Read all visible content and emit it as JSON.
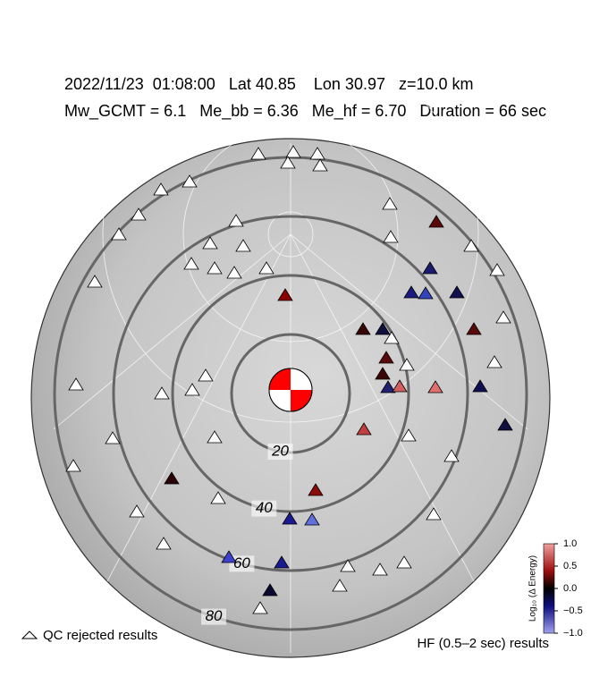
{
  "header": {
    "line1": "2022/11/23  01:08:00   Lat 40.85    Lon 30.97   z=10.0 km",
    "line2": "Mw_GCMT = 6.1   Me_bb = 6.36   Me_hf = 6.70   Duration = 66 sec"
  },
  "distance_rings": [
    20,
    40,
    60,
    80
  ],
  "colorbar": {
    "label": "Log₁₀ (Δ Energy)",
    "lim": [
      -1,
      1
    ],
    "ticks": [
      {
        "value": 1,
        "label": "1.0"
      },
      {
        "value": 0.5,
        "label": "0.5"
      },
      {
        "value": 0,
        "label": "0.0"
      },
      {
        "value": -0.5,
        "label": "−0.5"
      },
      {
        "value": -1,
        "label": "−1.0"
      }
    ]
  },
  "legend": {
    "rejected": "QC rejected results",
    "results": "HF (0.5–2 sec) results"
  }
}
